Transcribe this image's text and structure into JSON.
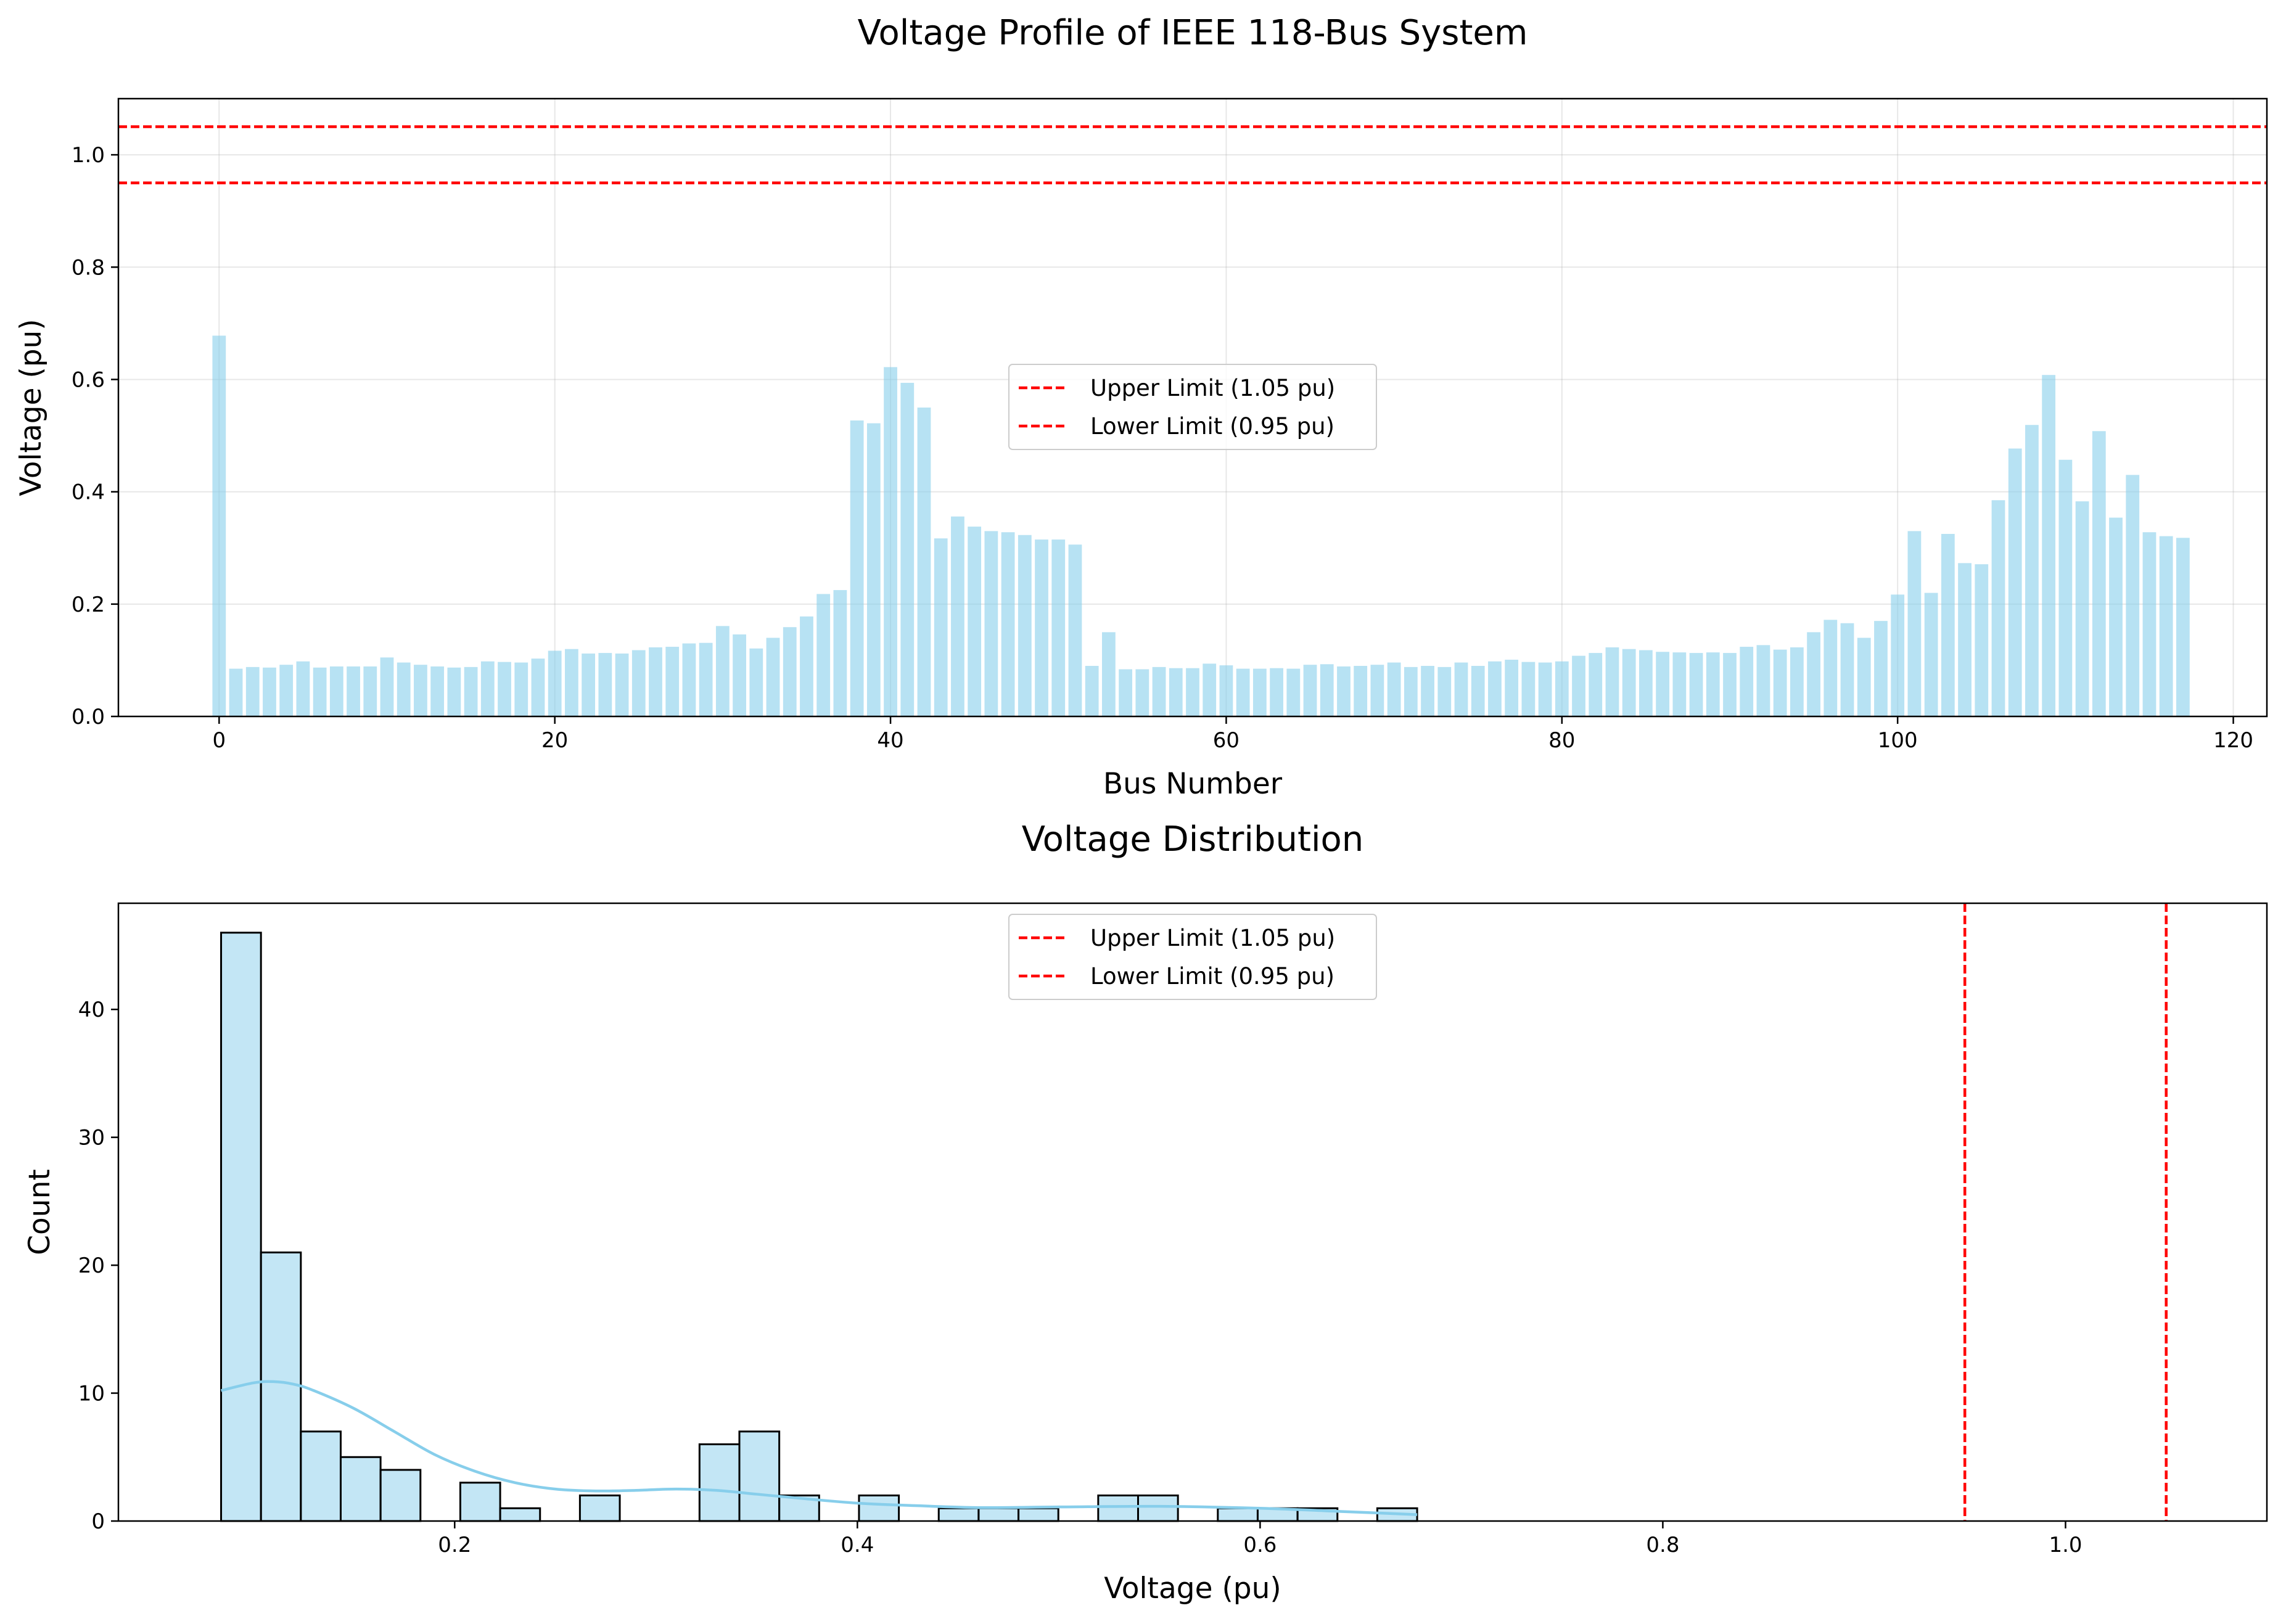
{
  "figure": {
    "suptitle": "Voltage Profile of IEEE 118-Bus System"
  },
  "chart_data": [
    {
      "type": "bar",
      "title": "",
      "xlabel": "Bus Number",
      "ylabel": "Voltage (pu)",
      "xlim": [
        -6,
        122
      ],
      "ylim": [
        0,
        1.1
      ],
      "xticks": [
        0,
        20,
        40,
        60,
        80,
        100,
        120
      ],
      "yticks": [
        0.0,
        0.2,
        0.4,
        0.6,
        0.8,
        1.0
      ],
      "ytick_labels": [
        "0.0",
        "0.2",
        "0.4",
        "0.6",
        "0.8",
        "1.0"
      ],
      "grid": true,
      "bar_color": "#87ceeb",
      "x": [
        0,
        1,
        2,
        3,
        4,
        5,
        6,
        7,
        8,
        9,
        10,
        11,
        12,
        13,
        14,
        15,
        16,
        17,
        18,
        19,
        20,
        21,
        22,
        23,
        24,
        25,
        26,
        27,
        28,
        29,
        30,
        31,
        32,
        33,
        34,
        35,
        36,
        37,
        38,
        39,
        40,
        41,
        42,
        43,
        44,
        45,
        46,
        47,
        48,
        49,
        50,
        51,
        52,
        53,
        54,
        55,
        56,
        57,
        58,
        59,
        60,
        61,
        62,
        63,
        64,
        65,
        66,
        67,
        68,
        69,
        70,
        71,
        72,
        73,
        74,
        75,
        76,
        77,
        78,
        79,
        80,
        81,
        82,
        83,
        84,
        85,
        86,
        87,
        88,
        89,
        90,
        91,
        92,
        93,
        94,
        95,
        96,
        97,
        98,
        99,
        100,
        101,
        102,
        103,
        104,
        105,
        106,
        107,
        108,
        109,
        110,
        111,
        112,
        113,
        114,
        115,
        116,
        117
      ],
      "values": [
        0.678,
        0.085,
        0.088,
        0.087,
        0.092,
        0.098,
        0.087,
        0.089,
        0.089,
        0.089,
        0.105,
        0.096,
        0.092,
        0.089,
        0.087,
        0.088,
        0.098,
        0.097,
        0.096,
        0.103,
        0.117,
        0.12,
        0.112,
        0.113,
        0.112,
        0.118,
        0.123,
        0.124,
        0.13,
        0.131,
        0.161,
        0.146,
        0.121,
        0.14,
        0.159,
        0.178,
        0.218,
        0.225,
        0.527,
        0.522,
        0.622,
        0.594,
        0.55,
        0.317,
        0.356,
        0.338,
        0.33,
        0.328,
        0.323,
        0.315,
        0.315,
        0.306,
        0.09,
        0.15,
        0.084,
        0.084,
        0.088,
        0.086,
        0.086,
        0.094,
        0.091,
        0.085,
        0.085,
        0.086,
        0.085,
        0.092,
        0.093,
        0.089,
        0.09,
        0.092,
        0.096,
        0.088,
        0.09,
        0.088,
        0.096,
        0.09,
        0.098,
        0.101,
        0.097,
        0.096,
        0.098,
        0.108,
        0.113,
        0.123,
        0.12,
        0.118,
        0.115,
        0.114,
        0.113,
        0.114,
        0.113,
        0.124,
        0.127,
        0.119,
        0.123,
        0.15,
        0.172,
        0.166,
        0.14,
        0.17,
        0.217,
        0.33,
        0.22,
        0.325,
        0.273,
        0.271,
        0.385,
        0.477,
        0.519,
        0.608,
        0.457,
        0.383,
        0.508,
        0.354,
        0.43,
        0.328,
        0.321,
        0.318
      ],
      "reference_lines": [
        {
          "orientation": "horizontal",
          "value": 1.05,
          "color": "#ff0000",
          "style": "dashed"
        },
        {
          "orientation": "horizontal",
          "value": 0.95,
          "color": "#ff0000",
          "style": "dashed"
        }
      ],
      "legend": {
        "placement": "center",
        "entries": [
          "Upper Limit (1.05 pu)",
          "Lower Limit (0.95 pu)"
        ]
      }
    },
    {
      "type": "histogram",
      "title": "Voltage Distribution",
      "xlabel": "Voltage (pu)",
      "ylabel": "Count",
      "xlim": [
        0.033,
        1.1
      ],
      "ylim": [
        0,
        48.3
      ],
      "xticks": [
        0.2,
        0.4,
        0.6,
        0.8,
        1.0
      ],
      "xtick_labels": [
        "0.2",
        "0.4",
        "0.6",
        "0.8",
        "1.0"
      ],
      "yticks": [
        0,
        10,
        20,
        30,
        40
      ],
      "grid": false,
      "bar_color": "#87ceeb",
      "bin_start": 0.084,
      "bin_width": 0.0198,
      "counts": [
        46,
        21,
        7,
        5,
        4,
        0,
        3,
        1,
        0,
        2,
        0,
        0,
        6,
        7,
        2,
        0,
        2,
        0,
        1,
        1,
        1,
        0,
        2,
        2,
        0,
        1,
        1,
        1,
        0,
        1
      ],
      "kde": {
        "color": "#87ceeb",
        "x": [
          0.084,
          0.1,
          0.11,
          0.12,
          0.13,
          0.15,
          0.17,
          0.19,
          0.21,
          0.23,
          0.25,
          0.27,
          0.29,
          0.31,
          0.33,
          0.35,
          0.37,
          0.4,
          0.43,
          0.46,
          0.5,
          0.55,
          0.6,
          0.64,
          0.678
        ],
        "y": [
          10.2,
          10.8,
          10.9,
          10.7,
          10.2,
          8.8,
          7.0,
          5.2,
          3.9,
          3.0,
          2.5,
          2.35,
          2.4,
          2.5,
          2.4,
          2.1,
          1.8,
          1.4,
          1.2,
          1.05,
          1.1,
          1.15,
          1.0,
          0.75,
          0.5
        ]
      },
      "reference_lines": [
        {
          "orientation": "vertical",
          "value": 1.05,
          "color": "#ff0000",
          "style": "dashed"
        },
        {
          "orientation": "vertical",
          "value": 0.95,
          "color": "#ff0000",
          "style": "dashed"
        }
      ],
      "legend": {
        "placement": "upper center",
        "entries": [
          "Upper Limit (1.05 pu)",
          "Lower Limit (0.95 pu)"
        ]
      }
    }
  ]
}
